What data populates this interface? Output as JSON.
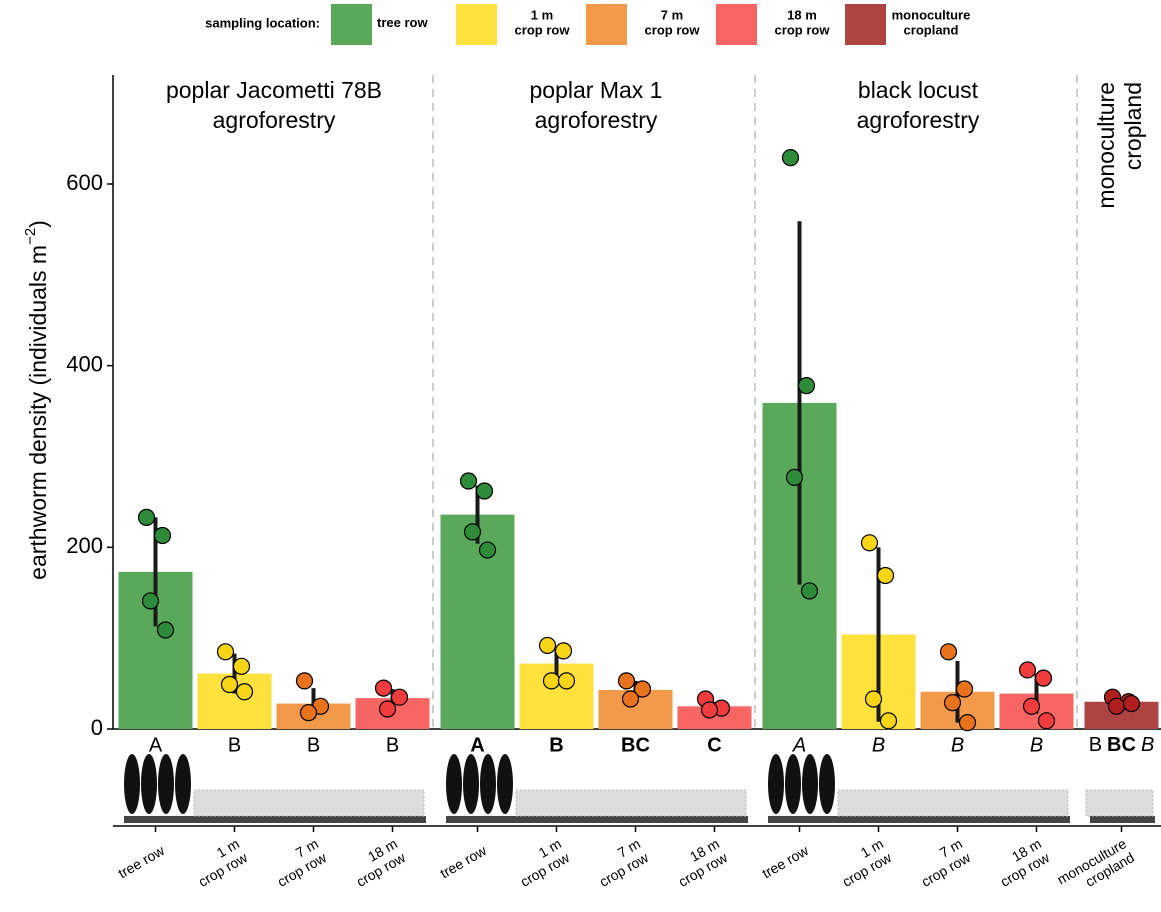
{
  "chart_data": {
    "type": "bar",
    "legend_title": "sampling location:",
    "locations": [
      {
        "name": [
          "tree row"
        ],
        "color": "#5aa95a",
        "point_color": "#2e8b3a"
      },
      {
        "name": [
          "1 m",
          "crop row"
        ],
        "color": "#fde23e",
        "point_color": "#f7d416"
      },
      {
        "name": [
          "7 m",
          "crop row"
        ],
        "color": "#f2994a",
        "point_color": "#e8731c"
      },
      {
        "name": [
          "18 m",
          "crop row"
        ],
        "color": "#f76663",
        "point_color": "#f03c3c"
      },
      {
        "name": [
          "monoculture",
          "cropland"
        ],
        "color": "#ad4442",
        "point_color": "#b01e1e"
      }
    ],
    "ylabel": {
      "text": "earthworm density (individuals m",
      "sup": "−2",
      "end": ")"
    },
    "ylim": [
      0,
      720
    ],
    "yticks": [
      0,
      200,
      400,
      600
    ],
    "groups": [
      {
        "title": [
          "poplar Jacometti 78B",
          "agroforestry"
        ],
        "letter_style": "normal",
        "letters": [
          "A",
          "B",
          "B",
          "B"
        ],
        "bars": [
          {
            "location": 0,
            "value": 173,
            "error": 60,
            "points": [
              233,
              213,
              141,
              109
            ]
          },
          {
            "location": 1,
            "value": 61,
            "error": 22,
            "points": [
              85,
              69,
              49,
              41
            ]
          },
          {
            "location": 2,
            "value": 28,
            "error": 17,
            "points": [
              53,
              25,
              18
            ]
          },
          {
            "location": 3,
            "value": 34,
            "error": 10,
            "points": [
              45,
              35,
              22
            ]
          }
        ]
      },
      {
        "title": [
          "poplar Max 1",
          "agroforestry"
        ],
        "letter_style": "bold",
        "letters": [
          "A",
          "B",
          "BC",
          "C"
        ],
        "bars": [
          {
            "location": 0,
            "value": 236,
            "error": 32,
            "points": [
              273,
              262,
              217,
              197
            ]
          },
          {
            "location": 1,
            "value": 72,
            "error": 18,
            "points": [
              92,
              86,
              53,
              53
            ]
          },
          {
            "location": 2,
            "value": 43,
            "error": 10,
            "points": [
              53,
              44,
              33
            ]
          },
          {
            "location": 3,
            "value": 25,
            "error": 5,
            "points": [
              33,
              23,
              21
            ]
          }
        ]
      },
      {
        "title": [
          "black locust",
          "agroforestry"
        ],
        "letter_style": "italic",
        "letters": [
          "A",
          "B",
          "B",
          "B"
        ],
        "bars": [
          {
            "location": 0,
            "value": 359,
            "error": 200,
            "points": [
              629,
              378,
              277,
              152
            ]
          },
          {
            "location": 1,
            "value": 104,
            "error": 96,
            "points": [
              205,
              169,
              33,
              9
            ]
          },
          {
            "location": 2,
            "value": 41,
            "error": 34,
            "points": [
              85,
              44,
              29,
              7
            ]
          },
          {
            "location": 3,
            "value": 39,
            "error": 22,
            "points": [
              65,
              56,
              25,
              9
            ]
          }
        ]
      },
      {
        "title": [
          "monoculture",
          "cropland"
        ],
        "letter_styles": [
          "normal",
          "bold",
          "italic"
        ],
        "letters": [
          "B",
          "BC",
          "B"
        ],
        "bars": [
          {
            "location": 4,
            "value": 30,
            "error": 5,
            "points": [
              35,
              30,
              25,
              28
            ]
          }
        ]
      }
    ]
  }
}
